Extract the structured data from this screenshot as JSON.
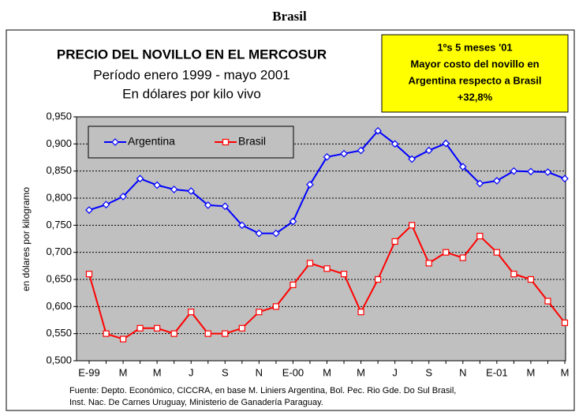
{
  "heading": "Brasil",
  "chart_data": {
    "type": "line",
    "title": "PRECIO DEL NOVILLO EN EL MERCOSUR",
    "subtitle": [
      "Período enero 1999 - mayo 2001",
      "En dólares por kilo vivo"
    ],
    "annotation": [
      "1ºs 5 meses '01",
      "Mayor costo del novillo en",
      "Argentina respecto a Brasil",
      "+32,8%"
    ],
    "y_label": "en dólares por kilogramo",
    "source": [
      "Fuente: Depto. Económico, CICCRA, en base M. Liniers Argentina, Bol. Pec. Rio Gde. Do Sul Brasil,",
      "Inst. Nac. De Carnes Uruguay, Ministerio de Ganadería Paraguay."
    ],
    "categories": [
      "E-99",
      null,
      "M",
      null,
      "M",
      null,
      "J",
      null,
      "S",
      null,
      "N",
      null,
      "E-00",
      null,
      "M",
      null,
      "M",
      null,
      "J",
      null,
      "S",
      null,
      "N",
      null,
      "E-01",
      null,
      "M",
      null,
      "M"
    ],
    "series": [
      {
        "name": "Argentina",
        "color": "#0000ff",
        "marker": "diamond",
        "values": [
          0.778,
          0.788,
          0.803,
          0.836,
          0.824,
          0.816,
          0.813,
          0.787,
          0.785,
          0.75,
          0.735,
          0.735,
          0.757,
          0.825,
          0.876,
          0.882,
          0.888,
          0.924,
          0.9,
          0.872,
          0.888,
          0.901,
          0.858,
          0.827,
          0.832,
          0.85,
          0.849,
          0.848,
          0.836
        ]
      },
      {
        "name": "Brasil",
        "color": "#ff0000",
        "marker": "square",
        "values": [
          0.66,
          0.55,
          0.54,
          0.56,
          0.56,
          0.55,
          0.59,
          0.55,
          0.55,
          0.56,
          0.59,
          0.6,
          0.64,
          0.68,
          0.67,
          0.66,
          0.59,
          0.65,
          0.72,
          0.75,
          0.68,
          0.7,
          0.69,
          0.73,
          0.7,
          0.66,
          0.65,
          0.61,
          0.57
        ]
      }
    ],
    "ylim": [
      0.5,
      0.95
    ],
    "yticks": [
      {
        "value": 0.5,
        "label": "0,500"
      },
      {
        "value": 0.55,
        "label": "0,550"
      },
      {
        "value": 0.6,
        "label": "0,600"
      },
      {
        "value": 0.65,
        "label": "0,650"
      },
      {
        "value": 0.7,
        "label": "0,700"
      },
      {
        "value": 0.75,
        "label": "0,750"
      },
      {
        "value": 0.8,
        "label": "0,800"
      },
      {
        "value": 0.85,
        "label": "0,850"
      },
      {
        "value": 0.9,
        "label": "0,900"
      },
      {
        "value": 0.95,
        "label": "0,950"
      }
    ],
    "grid": true,
    "legend": "top-left"
  }
}
